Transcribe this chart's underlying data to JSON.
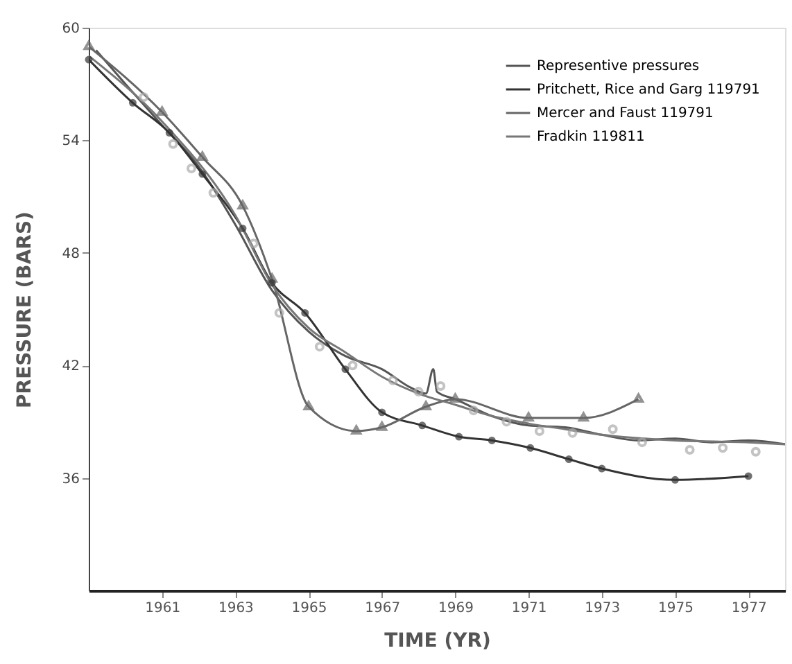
{
  "chart_data": {
    "type": "line",
    "xlabel": "TIME (YR)",
    "ylabel": "PRESSURE (BARS)",
    "xlim": [
      1959,
      1978
    ],
    "ylim": [
      30,
      60
    ],
    "xticks": [
      1961,
      1963,
      1965,
      1967,
      1969,
      1971,
      1973,
      1975,
      1977
    ],
    "yticks": [
      36,
      42,
      48,
      54,
      60
    ],
    "grid": false,
    "legend": "top right",
    "line_style": "solid",
    "series": [
      {
        "name": "Representive pressures",
        "color": "#555555",
        "marker": "none",
        "x": [
          1959.2,
          1960,
          1961,
          1962,
          1963,
          1964,
          1965,
          1966,
          1967,
          1967.8,
          1968.2,
          1968.4,
          1968.5,
          1969,
          1970,
          1971,
          1972,
          1973,
          1974,
          1975,
          1976,
          1977,
          1978
        ],
        "values": [
          58.8,
          57.0,
          54.8,
          52.6,
          49.5,
          46.0,
          43.8,
          42.5,
          41.8,
          40.8,
          40.5,
          41.8,
          40.6,
          40.2,
          39.3,
          38.8,
          38.7,
          38.3,
          38.0,
          38.1,
          37.9,
          38.0,
          37.8
        ]
      },
      {
        "name": "Pritchett, Rice and Garg 119791",
        "color": "#333333",
        "marker": "circle",
        "x": [
          1959,
          1960.2,
          1961.2,
          1962.1,
          1963.2,
          1964.0,
          1964.9,
          1966,
          1967.0,
          1968.1,
          1969.1,
          1970.0,
          1971.05,
          1972.1,
          1973.0,
          1975.0,
          1977.0
        ],
        "values": [
          58.3,
          56.0,
          54.4,
          52.2,
          49.3,
          46.4,
          44.8,
          41.8,
          39.5,
          38.8,
          38.2,
          38.0,
          37.6,
          37.0,
          36.5,
          35.9,
          36.1
        ]
      },
      {
        "name": "Mercer and Faust 119791",
        "color": "#666666",
        "marker": "triangle",
        "x": [
          1959,
          1961,
          1962.1,
          1963.2,
          1964.0,
          1965.0,
          1966.3,
          1967.0,
          1968.2,
          1969.0,
          1971,
          1972.5,
          1974.0
        ],
        "values": [
          59.0,
          55.5,
          53.1,
          50.5,
          46.6,
          39.8,
          38.5,
          38.7,
          39.8,
          40.2,
          39.2,
          39.2,
          40.2
        ]
      },
      {
        "name": "Fradkin 119811",
        "color": "#777777",
        "marker": "none",
        "x": [
          1959,
          1961,
          1963,
          1964,
          1965,
          1966,
          1967,
          1968,
          1969,
          1970,
          1971,
          1972,
          1973,
          1975,
          1977,
          1978
        ],
        "values": [
          58.5,
          55.0,
          50.0,
          46.3,
          44.0,
          42.7,
          41.4,
          40.5,
          39.9,
          39.3,
          38.9,
          38.6,
          38.3,
          38.0,
          37.9,
          37.8
        ]
      },
      {
        "type": "scatter",
        "color": "#aaaaaa",
        "marker": "circle",
        "x": [
          1960.5,
          1961.3,
          1961.8,
          1962.4,
          1963.5,
          1964.2,
          1965.3,
          1966.2,
          1967.3,
          1968.0,
          1968.6,
          1969.5,
          1970.4,
          1971.3,
          1972.2,
          1973.3,
          1974.1,
          1975.4,
          1976.3,
          1977.2
        ],
        "values": [
          56.3,
          53.8,
          52.5,
          51.2,
          48.5,
          44.8,
          43.0,
          42.0,
          41.2,
          40.6,
          40.9,
          39.6,
          39.0,
          38.5,
          38.4,
          38.6,
          37.9,
          37.5,
          37.6,
          37.4
        ]
      }
    ]
  }
}
